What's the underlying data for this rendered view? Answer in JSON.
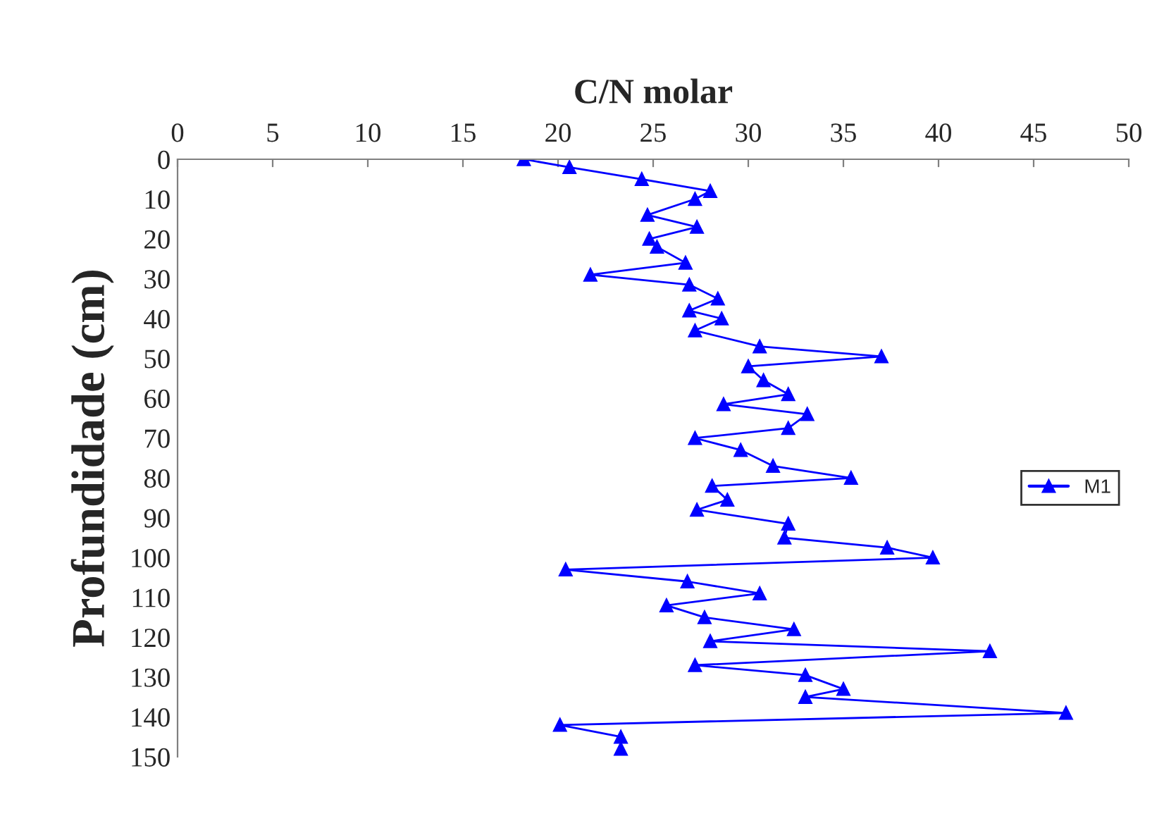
{
  "chart_data": {
    "type": "line",
    "xlabel": "C/N molar",
    "ylabel": "Profundidade (cm)",
    "xlim": [
      0,
      50
    ],
    "xticks": [
      0,
      5,
      10,
      15,
      20,
      25,
      30,
      35,
      40,
      45,
      50
    ],
    "ylim": [
      150,
      0
    ],
    "yticks": [
      0,
      10,
      20,
      30,
      40,
      50,
      60,
      70,
      80,
      90,
      100,
      110,
      120,
      130,
      140,
      150
    ],
    "grid": false,
    "legend": "right",
    "marker": "triangle",
    "line_style": "solid",
    "series": [
      {
        "name": "M1",
        "color": "#0000ff",
        "x": [
          18.2,
          20.6,
          24.4,
          28.0,
          27.2,
          24.7,
          27.3,
          24.8,
          25.2,
          26.7,
          21.7,
          26.9,
          28.4,
          26.9,
          28.6,
          27.2,
          30.6,
          37.0,
          30.0,
          30.8,
          32.1,
          28.7,
          33.1,
          32.1,
          27.2,
          29.6,
          31.3,
          35.4,
          28.1,
          28.9,
          27.3,
          32.1,
          31.9,
          37.3,
          39.7,
          20.4,
          26.8,
          30.6,
          25.7,
          27.7,
          32.4,
          28.0,
          42.7,
          27.2,
          33.0,
          35.0,
          33.0,
          46.7,
          20.1,
          23.3,
          23.3
        ],
        "values": [
          0,
          2,
          5,
          8,
          10,
          14,
          17,
          20,
          22,
          26,
          29,
          31.5,
          35,
          38,
          40,
          43,
          47,
          49.5,
          52,
          55.5,
          59,
          61.5,
          64,
          67.5,
          70,
          73,
          77,
          80,
          82,
          85.5,
          88,
          91.5,
          95,
          97.5,
          100,
          103,
          106,
          109,
          112,
          115,
          118,
          121,
          123.5,
          127,
          129.5,
          133,
          135,
          139,
          142,
          145,
          148
        ]
      }
    ]
  }
}
